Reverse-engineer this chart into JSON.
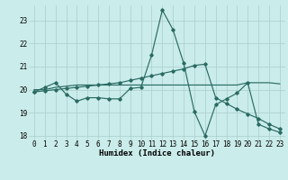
{
  "bg_color": "#caecea",
  "line_color": "#2a6b62",
  "grid_color": "#aacfcc",
  "xlabel": "Humidex (Indice chaleur)",
  "xlim": [
    -0.5,
    23.5
  ],
  "ylim": [
    17.8,
    23.65
  ],
  "yticks": [
    18,
    19,
    20,
    21,
    22,
    23
  ],
  "xticks": [
    0,
    1,
    2,
    3,
    4,
    5,
    6,
    7,
    8,
    9,
    10,
    11,
    12,
    13,
    14,
    15,
    16,
    17,
    18,
    19,
    20,
    21,
    22,
    23
  ],
  "line1_x": [
    0,
    1,
    2,
    3,
    4,
    5,
    6,
    7,
    8,
    9,
    10,
    11,
    12,
    13,
    14,
    15,
    16,
    17,
    18,
    19,
    20,
    21,
    22,
    23
  ],
  "line1_y": [
    19.9,
    20.1,
    20.3,
    19.8,
    19.5,
    19.65,
    19.65,
    19.6,
    19.6,
    20.05,
    20.1,
    21.5,
    23.45,
    22.6,
    21.15,
    19.05,
    18.0,
    19.35,
    19.6,
    19.85,
    20.3,
    18.5,
    18.3,
    18.15
  ],
  "line2_x": [
    0,
    1,
    2,
    3,
    4,
    5,
    6,
    7,
    8,
    9,
    10,
    11,
    12,
    13,
    14,
    15,
    16,
    17,
    18,
    19,
    20,
    21,
    22,
    23
  ],
  "line2_y": [
    20.0,
    20.0,
    20.1,
    20.15,
    20.2,
    20.2,
    20.2,
    20.2,
    20.2,
    20.2,
    20.2,
    20.2,
    20.2,
    20.2,
    20.2,
    20.2,
    20.2,
    20.2,
    20.2,
    20.2,
    20.3,
    20.3,
    20.3,
    20.25
  ],
  "line3_x": [
    0,
    1,
    2,
    3,
    4,
    5,
    6,
    7,
    8,
    9,
    10,
    11,
    12,
    13,
    14,
    15,
    16,
    17,
    18,
    19,
    20,
    21,
    22,
    23
  ],
  "line3_y": [
    19.9,
    19.95,
    20.0,
    20.05,
    20.1,
    20.15,
    20.2,
    20.25,
    20.3,
    20.4,
    20.5,
    20.6,
    20.7,
    20.8,
    20.9,
    21.05,
    21.1,
    19.65,
    19.4,
    19.15,
    18.95,
    18.75,
    18.5,
    18.3
  ],
  "axis_fontsize": 6.5,
  "tick_fontsize": 5.5,
  "marker": "D",
  "marker_size": 1.8,
  "linewidth": 0.85
}
